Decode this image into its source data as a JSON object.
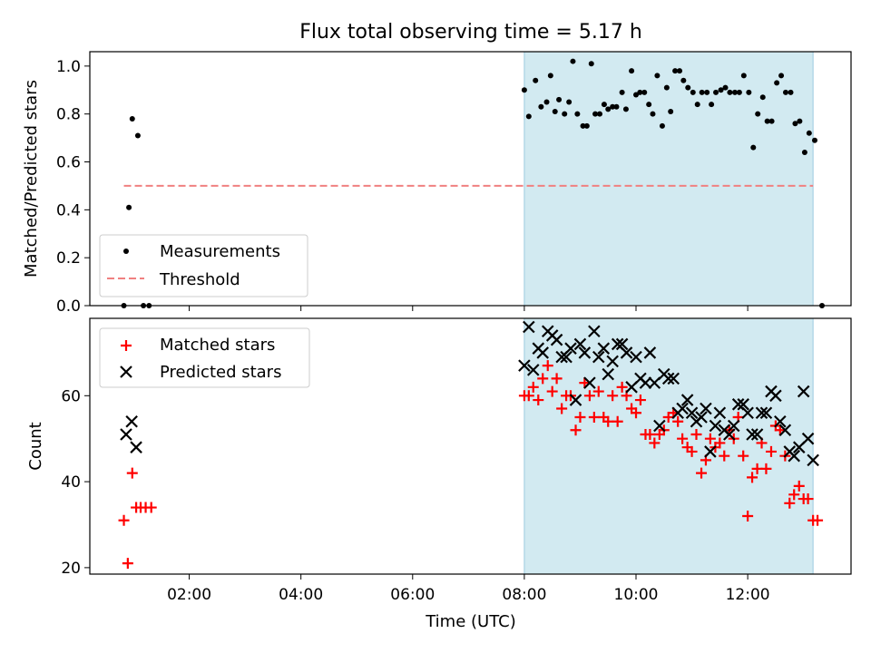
{
  "chart_data": {
    "title": "Flux total observing time = 5.17 h",
    "xlabel": "Time (UTC)",
    "x_ticks": [
      "02:00",
      "04:00",
      "06:00",
      "08:00",
      "10:00",
      "12:00"
    ],
    "x_range_hours": [
      0.22,
      13.85
    ],
    "shaded_interval_hours": [
      8.0,
      13.17
    ],
    "shade_color": "#add8e6",
    "panels": [
      {
        "type": "scatter",
        "ylabel": "Matched/Predicted stars",
        "ylim": [
          0,
          1.06
        ],
        "yticks": [
          "0.0",
          "0.2",
          "0.4",
          "0.6",
          "0.8",
          "1.0"
        ],
        "legend_position": "lower-left",
        "series": [
          {
            "name": "Measurements",
            "marker": "dot",
            "color": "#000000",
            "x": [
              0.83,
              0.92,
              0.98,
              1.08,
              1.18,
              1.28,
              8.0,
              8.08,
              8.2,
              8.3,
              8.4,
              8.47,
              8.55,
              8.62,
              8.72,
              8.8,
              8.87,
              8.95,
              9.05,
              9.12,
              9.2,
              9.27,
              9.35,
              9.43,
              9.5,
              9.58,
              9.65,
              9.75,
              9.82,
              9.92,
              10.0,
              10.07,
              10.15,
              10.23,
              10.3,
              10.38,
              10.47,
              10.55,
              10.62,
              10.7,
              10.78,
              10.85,
              10.93,
              11.02,
              11.1,
              11.18,
              11.27,
              11.35,
              11.43,
              11.52,
              11.6,
              11.68,
              11.77,
              11.85,
              11.93,
              12.02,
              12.1,
              12.18,
              12.27,
              12.35,
              12.43,
              12.52,
              12.6,
              12.68,
              12.77,
              12.85,
              12.93,
              13.02,
              13.1,
              13.2,
              13.33
            ],
            "y": [
              0.0,
              0.41,
              0.78,
              0.71,
              0.0,
              0.0,
              0.9,
              0.79,
              0.94,
              0.83,
              0.85,
              0.96,
              0.81,
              0.86,
              0.8,
              0.85,
              1.02,
              0.8,
              0.75,
              0.75,
              1.01,
              0.8,
              0.8,
              0.84,
              0.82,
              0.83,
              0.83,
              0.89,
              0.82,
              0.98,
              0.88,
              0.89,
              0.89,
              0.84,
              0.8,
              0.96,
              0.75,
              0.91,
              0.81,
              0.98,
              0.98,
              0.94,
              0.91,
              0.89,
              0.84,
              0.89,
              0.89,
              0.84,
              0.89,
              0.9,
              0.91,
              0.89,
              0.89,
              0.89,
              0.96,
              0.89,
              0.66,
              0.8,
              0.87,
              0.77,
              0.77,
              0.93,
              0.96,
              0.89,
              0.89,
              0.76,
              0.77,
              0.64,
              0.72,
              0.69,
              0.0
            ]
          },
          {
            "name": "Threshold",
            "marker": "dashed-line",
            "color": "#f08080",
            "x": [
              0.83,
              13.17
            ],
            "y": [
              0.5,
              0.5
            ]
          }
        ]
      },
      {
        "type": "scatter",
        "ylabel": "Count",
        "ylim": [
          18.5,
          78
        ],
        "yticks": [
          "20",
          "40",
          "60"
        ],
        "legend_position": "top-left",
        "series": [
          {
            "name": "Matched stars",
            "marker": "plus",
            "color": "#ff0000",
            "x": [
              0.83,
              0.9,
              0.98,
              1.05,
              1.13,
              1.22,
              1.32,
              8.0,
              8.08,
              8.16,
              8.25,
              8.33,
              8.42,
              8.5,
              8.58,
              8.67,
              8.75,
              8.83,
              8.92,
              9.0,
              9.08,
              9.17,
              9.25,
              9.33,
              9.42,
              9.5,
              9.58,
              9.67,
              9.75,
              9.83,
              9.92,
              10.0,
              10.08,
              10.17,
              10.25,
              10.33,
              10.42,
              10.5,
              10.58,
              10.67,
              10.75,
              10.83,
              10.92,
              11.0,
              11.08,
              11.17,
              11.25,
              11.33,
              11.42,
              11.5,
              11.58,
              11.67,
              11.75,
              11.83,
              11.92,
              12.0,
              12.08,
              12.17,
              12.25,
              12.33,
              12.42,
              12.5,
              12.58,
              12.67,
              12.75,
              12.83,
              12.92,
              13.0,
              13.08,
              13.17,
              13.25
            ],
            "y": [
              31,
              21,
              42,
              34,
              34,
              34,
              34,
              60,
              60,
              62,
              59,
              64,
              67,
              61,
              64,
              57,
              60,
              60,
              52,
              55,
              63,
              60,
              55,
              61,
              55,
              54,
              60,
              54,
              62,
              60,
              57,
              56,
              59,
              51,
              51,
              49,
              51,
              52,
              55,
              56,
              54,
              50,
              48,
              47,
              51,
              42,
              45,
              50,
              48,
              49,
              46,
              52,
              50,
              55,
              46,
              32,
              41,
              43,
              49,
              43,
              47,
              53,
              52,
              46,
              35,
              37,
              39,
              36,
              36,
              31,
              31
            ]
          },
          {
            "name": "Predicted stars",
            "marker": "x",
            "color": "#000000",
            "x": [
              0.87,
              0.97,
              1.05,
              8.0,
              8.08,
              8.16,
              8.25,
              8.33,
              8.42,
              8.5,
              8.58,
              8.67,
              8.75,
              8.83,
              8.92,
              9.0,
              9.08,
              9.17,
              9.25,
              9.33,
              9.42,
              9.5,
              9.58,
              9.67,
              9.75,
              9.83,
              9.92,
              10.0,
              10.08,
              10.17,
              10.25,
              10.33,
              10.42,
              10.5,
              10.58,
              10.67,
              10.75,
              10.83,
              10.92,
              11.0,
              11.08,
              11.17,
              11.25,
              11.33,
              11.42,
              11.5,
              11.58,
              11.67,
              11.75,
              11.83,
              11.92,
              12.0,
              12.08,
              12.17,
              12.25,
              12.33,
              12.42,
              12.5,
              12.58,
              12.67,
              12.75,
              12.83,
              12.92,
              13.0,
              13.08,
              13.17
            ],
            "y": [
              51,
              54,
              48,
              67,
              76,
              66,
              71,
              70,
              75,
              74,
              73,
              69,
              69,
              71,
              59,
              72,
              70,
              63,
              75,
              69,
              71,
              65,
              68,
              72,
              72,
              70,
              62,
              69,
              64,
              63,
              70,
              63,
              53,
              65,
              64,
              64,
              56,
              57,
              59,
              56,
              54,
              55,
              57,
              47,
              53,
              56,
              52,
              51,
              53,
              58,
              58,
              56,
              51,
              51,
              56,
              56,
              61,
              60,
              54,
              52,
              47,
              46,
              48,
              61,
              50,
              45
            ]
          }
        ]
      }
    ]
  }
}
